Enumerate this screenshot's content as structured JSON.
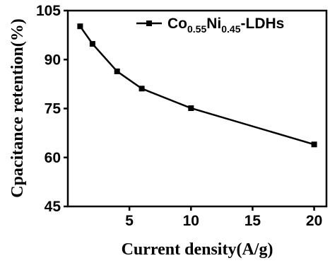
{
  "chart_data": {
    "type": "line",
    "title": "",
    "xlabel": "Current density(A/g)",
    "ylabel": "Cpacitance retention(%)",
    "xlim": [
      0,
      21
    ],
    "ylim": [
      45,
      105
    ],
    "xticks": [
      5,
      10,
      15,
      20
    ],
    "yticks": [
      45,
      60,
      75,
      90,
      105
    ],
    "grid": false,
    "legend_position": "top-right",
    "series": [
      {
        "name": "Co0.55Ni0.45-LDHs",
        "color": "#000000",
        "marker": "square",
        "x": [
          1,
          2,
          4,
          6,
          10,
          20
        ],
        "y": [
          100.2,
          94.8,
          86.4,
          81.1,
          75.1,
          64.0
        ]
      }
    ]
  },
  "legend": {
    "parts": [
      "Co",
      "0.55",
      "Ni",
      "0.45",
      "-LDHs"
    ]
  }
}
